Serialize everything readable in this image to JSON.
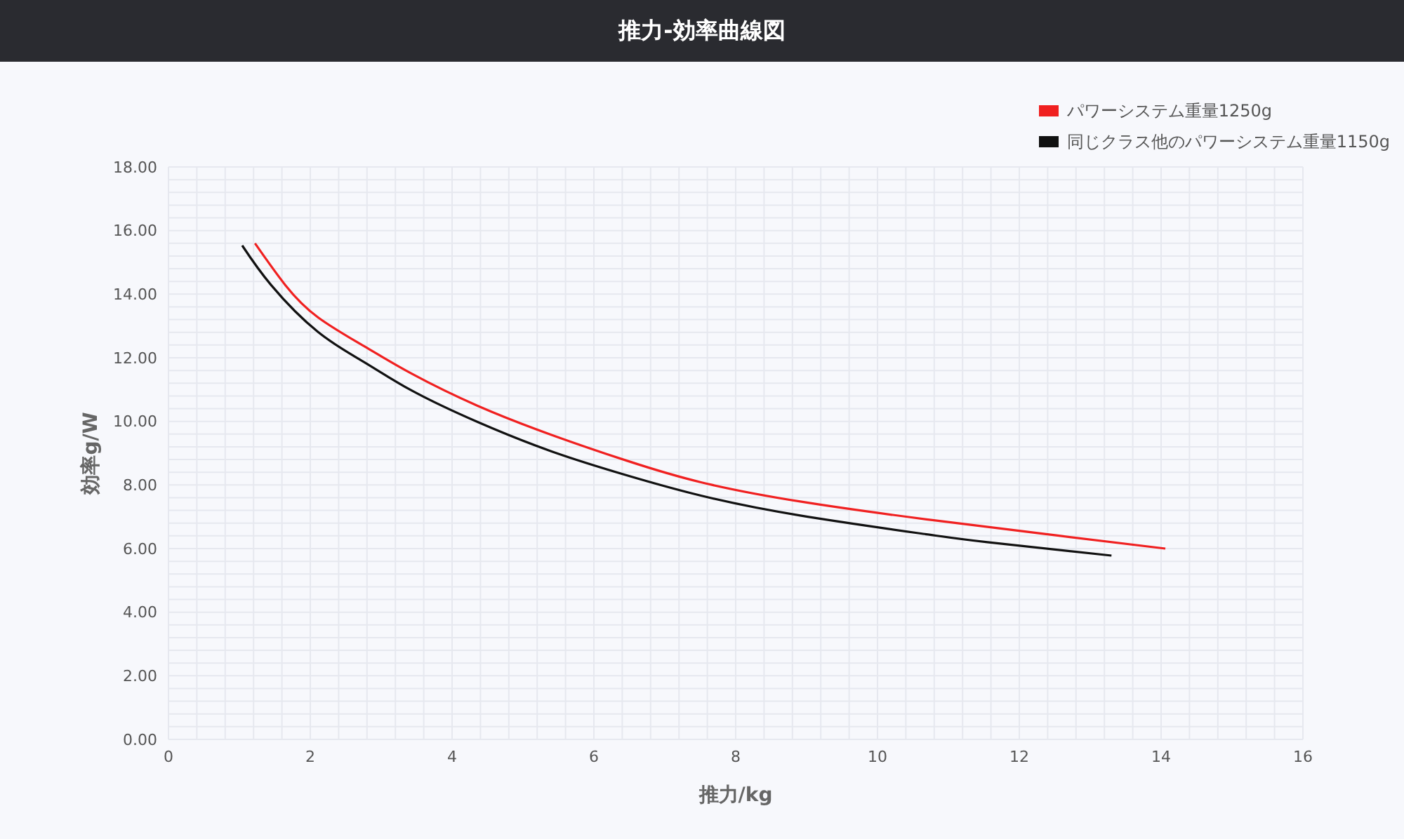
{
  "chart_data": {
    "type": "line",
    "title": "推力-効率曲線図",
    "xlabel": "推力/kg",
    "ylabel": "効率g/W",
    "xlim": [
      0,
      16
    ],
    "xticks": [
      0,
      2,
      4,
      6,
      8,
      10,
      12,
      14,
      16
    ],
    "ylim": [
      0,
      18
    ],
    "yticks": [
      {
        "value": 0,
        "label": "0.00"
      },
      {
        "value": 2,
        "label": "2.00"
      },
      {
        "value": 4,
        "label": "4.00"
      },
      {
        "value": 6,
        "label": "6.00"
      },
      {
        "value": 8,
        "label": "8.00"
      },
      {
        "value": 10,
        "label": "10.00"
      },
      {
        "value": 12,
        "label": "12.00"
      },
      {
        "value": 14,
        "label": "14.00"
      },
      {
        "value": 16,
        "label": "16.00"
      },
      {
        "value": 18,
        "label": "18.00"
      }
    ],
    "grid": true,
    "legend": "top right",
    "marker": "none",
    "line_style": "solid",
    "series": [
      {
        "name": "パワーシステム重量1250g",
        "color": "#f02020",
        "x": [
          1.22,
          1.65,
          2.11,
          2.77,
          3.43,
          4.36,
          5.41,
          6.47,
          7.52,
          8.91,
          10.69,
          12.5,
          14.06
        ],
        "values": [
          15.6,
          14.28,
          13.27,
          12.35,
          11.5,
          10.49,
          9.57,
          8.76,
          8.08,
          7.48,
          6.92,
          6.42,
          6.0
        ]
      },
      {
        "name": "同じクラス他のパワーシステム重量1150g",
        "color": "#111111",
        "x": [
          1.04,
          1.45,
          2.11,
          2.77,
          3.43,
          4.36,
          5.41,
          6.47,
          7.52,
          8.91,
          10.69,
          11.55,
          13.3
        ],
        "values": [
          15.53,
          14.28,
          12.81,
          11.85,
          10.97,
          9.98,
          9.05,
          8.3,
          7.66,
          7.04,
          6.45,
          6.2,
          5.78
        ]
      }
    ]
  }
}
